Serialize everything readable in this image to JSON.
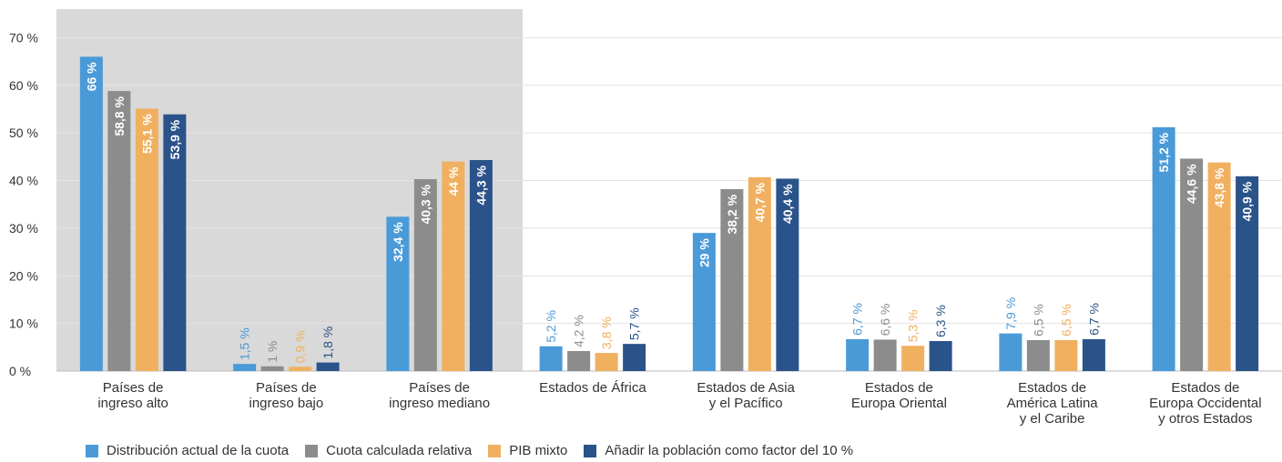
{
  "chart_data": {
    "type": "bar",
    "categories": [
      "Países de\ningreso alto",
      "Países de\ningreso bajo",
      "Países de\ningreso mediano",
      "Estados de África",
      "Estados de Asia\ny el Pacífico",
      "Estados de\nEuropa Oriental",
      "Estados de\nAmérica Latina\ny el Caribe",
      "Estados de\nEuropa Occidental\ny otros Estados"
    ],
    "series": [
      {
        "name": "Distribución actual de la cuota",
        "color": "#4a9ad8",
        "values": [
          66,
          1.5,
          32.4,
          5.2,
          29,
          6.7,
          7.9,
          51.2
        ],
        "value_labels": [
          "66 %",
          "1,5 %",
          "32,4 %",
          "5,2 %",
          "29 %",
          "6,7 %",
          "7,9 %",
          "51,2 %"
        ]
      },
      {
        "name": "Cuota calculada relativa",
        "color": "#8c8c8c",
        "values": [
          58.8,
          1,
          40.3,
          4.2,
          38.2,
          6.6,
          6.5,
          44.6
        ],
        "value_labels": [
          "58,8 %",
          "1 %",
          "40,3 %",
          "4,2 %",
          "38,2 %",
          "6,6 %",
          "6,5 %",
          "44,6 %"
        ]
      },
      {
        "name": "PIB mixto",
        "color": "#f0b060",
        "values": [
          55.1,
          0.9,
          44,
          3.8,
          40.7,
          5.3,
          6.5,
          43.8
        ],
        "value_labels": [
          "55,1 %",
          "0,9 %",
          "44 %",
          "3,8 %",
          "40,7 %",
          "5,3 %",
          "6,5 %",
          "43,8 %"
        ]
      },
      {
        "name": "Añadir la población como factor del 10 %",
        "color": "#2a538a",
        "values": [
          53.9,
          1.8,
          44.3,
          5.7,
          40.4,
          6.3,
          6.7,
          40.9
        ],
        "value_labels": [
          "53,9 %",
          "1,8 %",
          "44,3 %",
          "5,7 %",
          "40,4 %",
          "6,3 %",
          "6,7 %",
          "40,9 %"
        ]
      }
    ],
    "ylim": [
      0,
      76
    ],
    "yticks": [
      {
        "value": 0,
        "label": "0 %"
      },
      {
        "value": 10,
        "label": "10 %"
      },
      {
        "value": 20,
        "label": "20 %"
      },
      {
        "value": 30,
        "label": "30 %"
      },
      {
        "value": 40,
        "label": "40 %"
      },
      {
        "value": 50,
        "label": "50 %"
      },
      {
        "value": 60,
        "label": "60 %"
      },
      {
        "value": 70,
        "label": "70 %"
      }
    ],
    "grid": true,
    "legend": "bottom"
  }
}
